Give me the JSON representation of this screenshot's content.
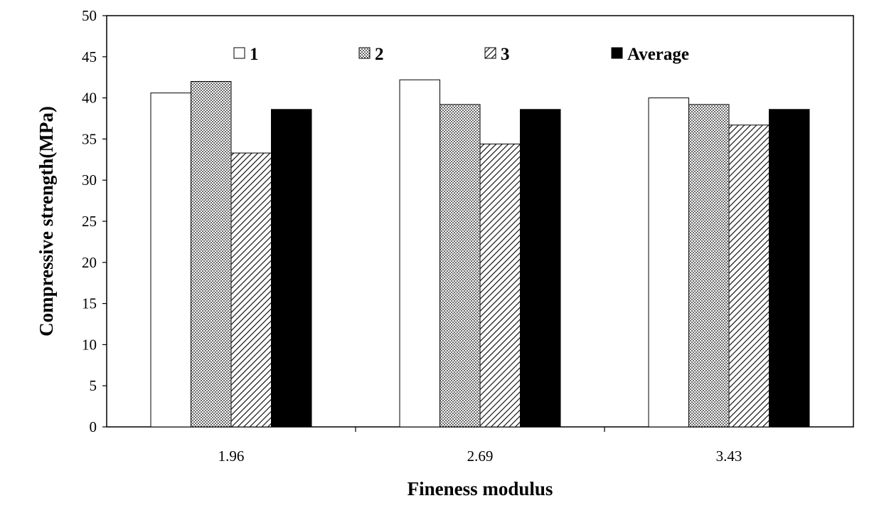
{
  "chart_data": {
    "type": "bar",
    "xlabel": "Fineness modulus",
    "ylabel": "Compressive strength(MPa)",
    "categories": [
      "1.96",
      "2.69",
      "3.43"
    ],
    "ylim": [
      0,
      50
    ],
    "yticks": [
      "0",
      "5",
      "10",
      "15",
      "20",
      "25",
      "30",
      "35",
      "40",
      "45",
      "50"
    ],
    "series": [
      {
        "name": "1",
        "values": [
          40.6,
          42.2,
          40.0
        ],
        "fill": "white"
      },
      {
        "name": "2",
        "values": [
          42.0,
          39.2,
          39.2
        ],
        "fill": "dots"
      },
      {
        "name": "3",
        "values": [
          33.3,
          34.4,
          36.7
        ],
        "fill": "diagonal-hatch"
      },
      {
        "name": "Average",
        "values": [
          38.6,
          38.6,
          38.6
        ],
        "fill": "black"
      }
    ],
    "legend_position": "top",
    "grid": false
  },
  "colors": {
    "bar_edge": "#000000",
    "solid_fill": "#000000",
    "plot_background": "#ffffff"
  }
}
